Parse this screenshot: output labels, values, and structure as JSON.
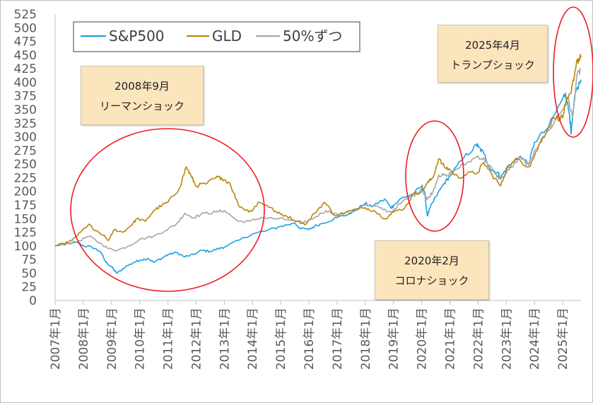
{
  "chart_data": {
    "type": "line",
    "title": "",
    "xlabel": "",
    "ylabel": "",
    "ylim": [
      0,
      525
    ],
    "y_ticks": [
      0,
      25,
      50,
      75,
      100,
      125,
      150,
      175,
      200,
      225,
      250,
      275,
      300,
      325,
      350,
      375,
      400,
      425,
      450,
      475,
      500,
      525
    ],
    "x_ticks": [
      "2007年1月",
      "2008年1月",
      "2009年1月",
      "2010年1月",
      "2011年1月",
      "2012年1月",
      "2013年1月",
      "2014年1月",
      "2015年1月",
      "2016年1月",
      "2017年1月",
      "2018年1月",
      "2019年1月",
      "2020年1月",
      "2021年1月",
      "2022年1月",
      "2023年1月",
      "2024年1月",
      "2025年1月"
    ],
    "x_range": [
      2007.0,
      2025.65
    ],
    "grid": false,
    "legend": "top-left",
    "series": [
      {
        "name": "S&P500",
        "color": "#1ba1e2",
        "points": [
          [
            2007.0,
            100
          ],
          [
            2007.4,
            104
          ],
          [
            2007.8,
            106
          ],
          [
            2008.0,
            100
          ],
          [
            2008.3,
            98
          ],
          [
            2008.6,
            90
          ],
          [
            2008.8,
            70
          ],
          [
            2009.0,
            62
          ],
          [
            2009.1,
            55
          ],
          [
            2009.2,
            50
          ],
          [
            2009.5,
            62
          ],
          [
            2009.8,
            70
          ],
          [
            2010.0,
            74
          ],
          [
            2010.3,
            77
          ],
          [
            2010.5,
            70
          ],
          [
            2010.8,
            78
          ],
          [
            2011.0,
            84
          ],
          [
            2011.3,
            88
          ],
          [
            2011.6,
            80
          ],
          [
            2011.9,
            84
          ],
          [
            2012.2,
            92
          ],
          [
            2012.5,
            90
          ],
          [
            2012.8,
            95
          ],
          [
            2013.0,
            98
          ],
          [
            2013.5,
            110
          ],
          [
            2014.0,
            122
          ],
          [
            2014.5,
            128
          ],
          [
            2015.0,
            136
          ],
          [
            2015.5,
            142
          ],
          [
            2015.7,
            132
          ],
          [
            2016.0,
            130
          ],
          [
            2016.2,
            136
          ],
          [
            2016.5,
            142
          ],
          [
            2017.0,
            152
          ],
          [
            2017.5,
            160
          ],
          [
            2018.0,
            178
          ],
          [
            2018.2,
            172
          ],
          [
            2018.7,
            186
          ],
          [
            2018.9,
            170
          ],
          [
            2019.0,
            174
          ],
          [
            2019.3,
            188
          ],
          [
            2019.7,
            195
          ],
          [
            2020.0,
            210
          ],
          [
            2020.1,
            200
          ],
          [
            2020.2,
            155
          ],
          [
            2020.3,
            170
          ],
          [
            2020.5,
            190
          ],
          [
            2020.8,
            215
          ],
          [
            2021.0,
            228
          ],
          [
            2021.5,
            262
          ],
          [
            2021.95,
            285
          ],
          [
            2022.0,
            282
          ],
          [
            2022.2,
            270
          ],
          [
            2022.45,
            240
          ],
          [
            2022.7,
            235
          ],
          [
            2022.8,
            225
          ],
          [
            2023.0,
            242
          ],
          [
            2023.5,
            265
          ],
          [
            2023.8,
            250
          ],
          [
            2024.0,
            290
          ],
          [
            2024.5,
            318
          ],
          [
            2025.0,
            370
          ],
          [
            2025.1,
            380
          ],
          [
            2025.25,
            340
          ],
          [
            2025.3,
            305
          ],
          [
            2025.45,
            380
          ],
          [
            2025.65,
            405
          ]
        ]
      },
      {
        "name": "GLD",
        "color": "#b8860b",
        "points": [
          [
            2007.0,
            100
          ],
          [
            2007.3,
            104
          ],
          [
            2007.6,
            110
          ],
          [
            2007.9,
            125
          ],
          [
            2008.2,
            140
          ],
          [
            2008.4,
            128
          ],
          [
            2008.7,
            120
          ],
          [
            2008.9,
            110
          ],
          [
            2009.1,
            130
          ],
          [
            2009.4,
            125
          ],
          [
            2009.7,
            138
          ],
          [
            2009.9,
            150
          ],
          [
            2010.2,
            145
          ],
          [
            2010.5,
            165
          ],
          [
            2010.8,
            175
          ],
          [
            2011.0,
            180
          ],
          [
            2011.4,
            205
          ],
          [
            2011.65,
            245
          ],
          [
            2011.85,
            225
          ],
          [
            2012.0,
            210
          ],
          [
            2012.4,
            215
          ],
          [
            2012.7,
            225
          ],
          [
            2012.9,
            225
          ],
          [
            2013.2,
            215
          ],
          [
            2013.5,
            175
          ],
          [
            2013.8,
            165
          ],
          [
            2014.0,
            165
          ],
          [
            2014.2,
            180
          ],
          [
            2014.5,
            175
          ],
          [
            2014.9,
            160
          ],
          [
            2015.2,
            155
          ],
          [
            2015.6,
            145
          ],
          [
            2015.9,
            140
          ],
          [
            2016.2,
            160
          ],
          [
            2016.55,
            180
          ],
          [
            2016.95,
            155
          ],
          [
            2017.5,
            165
          ],
          [
            2018.0,
            170
          ],
          [
            2018.3,
            165
          ],
          [
            2018.7,
            150
          ],
          [
            2019.0,
            162
          ],
          [
            2019.4,
            170
          ],
          [
            2019.7,
            195
          ],
          [
            2020.0,
            200
          ],
          [
            2020.2,
            215
          ],
          [
            2020.4,
            225
          ],
          [
            2020.6,
            260
          ],
          [
            2020.8,
            245
          ],
          [
            2021.0,
            240
          ],
          [
            2021.3,
            225
          ],
          [
            2021.6,
            232
          ],
          [
            2022.0,
            235
          ],
          [
            2022.2,
            253
          ],
          [
            2022.5,
            230
          ],
          [
            2022.8,
            210
          ],
          [
            2023.0,
            240
          ],
          [
            2023.4,
            260
          ],
          [
            2023.8,
            245
          ],
          [
            2024.0,
            265
          ],
          [
            2024.3,
            300
          ],
          [
            2024.7,
            335
          ],
          [
            2025.0,
            335
          ],
          [
            2025.1,
            360
          ],
          [
            2025.3,
            380
          ],
          [
            2025.5,
            440
          ],
          [
            2025.65,
            445
          ]
        ]
      },
      {
        "name": "50%ずつ",
        "color": "#a6a6a6",
        "points": [
          [
            2007.0,
            100
          ],
          [
            2007.4,
            104
          ],
          [
            2007.8,
            108
          ],
          [
            2008.2,
            118
          ],
          [
            2008.6,
            105
          ],
          [
            2008.9,
            95
          ],
          [
            2009.2,
            92
          ],
          [
            2009.6,
            100
          ],
          [
            2010.0,
            112
          ],
          [
            2010.5,
            118
          ],
          [
            2010.9,
            128
          ],
          [
            2011.3,
            140
          ],
          [
            2011.6,
            160
          ],
          [
            2011.9,
            152
          ],
          [
            2012.3,
            160
          ],
          [
            2012.7,
            162
          ],
          [
            2013.0,
            165
          ],
          [
            2013.5,
            145
          ],
          [
            2013.9,
            145
          ],
          [
            2014.3,
            152
          ],
          [
            2014.8,
            150
          ],
          [
            2015.3,
            148
          ],
          [
            2015.8,
            142
          ],
          [
            2016.2,
            152
          ],
          [
            2016.6,
            165
          ],
          [
            2017.0,
            158
          ],
          [
            2017.5,
            162
          ],
          [
            2018.0,
            175
          ],
          [
            2018.5,
            170
          ],
          [
            2018.9,
            162
          ],
          [
            2019.3,
            180
          ],
          [
            2019.7,
            192
          ],
          [
            2020.0,
            205
          ],
          [
            2020.2,
            185
          ],
          [
            2020.4,
            200
          ],
          [
            2020.6,
            230
          ],
          [
            2020.9,
            228
          ],
          [
            2021.2,
            240
          ],
          [
            2021.6,
            252
          ],
          [
            2022.0,
            265
          ],
          [
            2022.3,
            255
          ],
          [
            2022.6,
            232
          ],
          [
            2022.8,
            222
          ],
          [
            2023.1,
            240
          ],
          [
            2023.5,
            262
          ],
          [
            2023.8,
            248
          ],
          [
            2024.0,
            275
          ],
          [
            2024.5,
            312
          ],
          [
            2025.0,
            350
          ],
          [
            2025.2,
            370
          ],
          [
            2025.35,
            335
          ],
          [
            2025.5,
            410
          ],
          [
            2025.65,
            425
          ]
        ]
      }
    ]
  },
  "callouts": [
    {
      "line1": "2008年9月",
      "line2": "リーマンショック"
    },
    {
      "line1": "2025年4月",
      "line2": "トランプショック"
    },
    {
      "line1": "2020年2月",
      "line2": "コロナショック"
    }
  ]
}
